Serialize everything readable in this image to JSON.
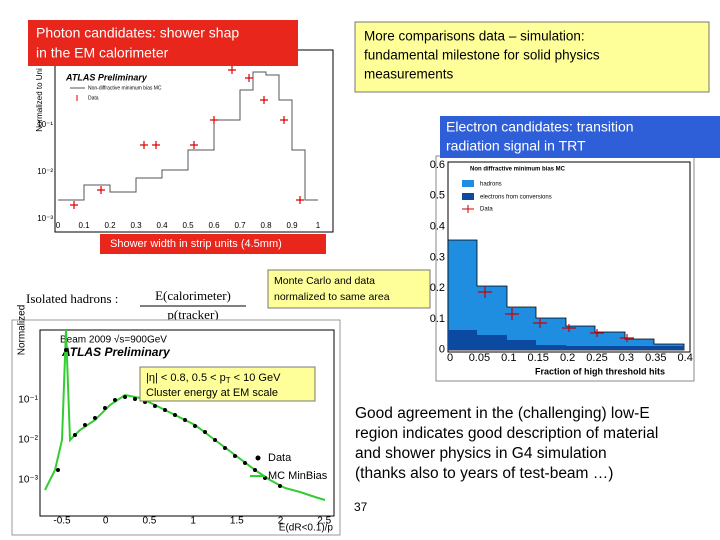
{
  "photon_box": {
    "lines": [
      "Photon candidates: shower shap",
      "in the EM calorimeter"
    ]
  },
  "comparison_box": {
    "lines": [
      "More comparisons data – simulation:",
      "fundamental milestone for solid physics",
      "measurements"
    ]
  },
  "electron_box": {
    "lines": [
      "Electron candidates: transition",
      "radiation signal in TRT"
    ]
  },
  "shower_label": "Shower width in strip units (4.5mm)",
  "mc_box": {
    "lines": [
      "Monte Carlo and data",
      "normalized to same area"
    ]
  },
  "cut_box": {
    "line1_parts": [
      "|η| < 0.8, 0.5 < p",
      "T",
      " < 10 GeV"
    ],
    "line2": "Cluster energy at EM scale"
  },
  "agreement": {
    "lines": [
      "Good agreement in the (challenging) low-E",
      "region indicates good description of material",
      "and shower physics in G4 simulation",
      "(thanks also to years of test-beam …)"
    ]
  },
  "page_number": "37",
  "plot_shower": {
    "y_label": "Normalized to Uni",
    "atlas": "ATLAS Preliminary",
    "legend": [
      "Non-diffractive minimum bias MC",
      "Data"
    ],
    "xticks": [
      "0",
      "0.1",
      "0.2",
      "0.3",
      "0.4",
      "0.5",
      "0.6",
      "0.7",
      "0.8",
      "0.9",
      "1"
    ],
    "yticks": [
      "10⁻¹",
      "10⁻²",
      "10⁻³"
    ]
  },
  "plot_trt": {
    "legend": [
      "Non diffractive minimum bias MC",
      "hadrons",
      "electrons from conversions",
      "Data"
    ],
    "xticks": [
      "0",
      "0.05",
      "0.1",
      "0.15",
      "0.2",
      "0.25",
      "0.3",
      "0.35",
      "0.4"
    ],
    "yticks": [
      "0.6",
      "0.5",
      "0.4",
      "0.3",
      "0.2",
      "0.1",
      "0"
    ],
    "x_label": "Fraction of high threshold hits"
  },
  "plot_ep": {
    "formula_label": "Isolated hadrons :",
    "numerator": "E(calorimeter)",
    "denominator": "p(tracker)",
    "beam": "Beam 2009 √s=900GeV",
    "atlas": "ATLAS Preliminary",
    "legend": [
      "Data",
      "MC MinBias"
    ],
    "y_label": "Normalized",
    "x_label": "E(dR<0.1)/p",
    "xticks": [
      "-0.5",
      "0",
      "0.5",
      "1",
      "1.5",
      "2",
      "2.5"
    ],
    "yticks": [
      "10⁻¹",
      "10⁻²",
      "10⁻³"
    ]
  }
}
